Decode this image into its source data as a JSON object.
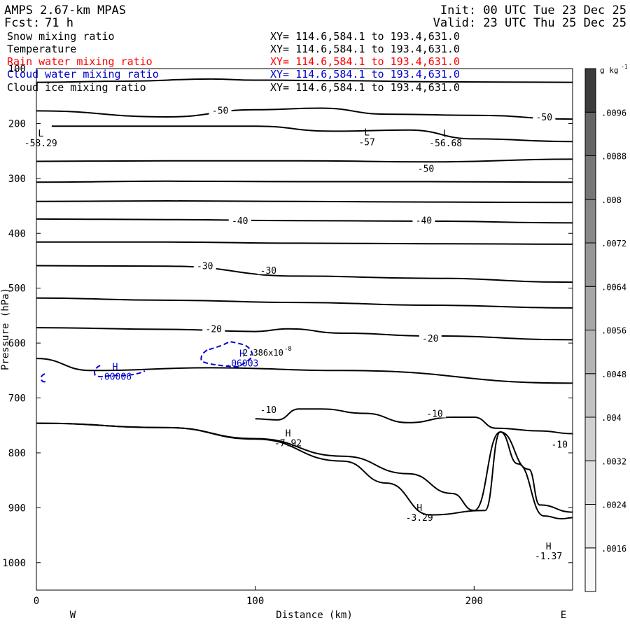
{
  "header": {
    "model": "AMPS 2.67-km MPAS",
    "fcst_label": "Fcst:",
    "fcst_hours": "71 h",
    "init": "Init: 00 UTC Tue 23 Dec 25",
    "valid": "Valid: 23 UTC Thu 25 Dec 25"
  },
  "fields": [
    {
      "name": "Snow mixing ratio",
      "xy": "XY= 114.6,584.1 to 193.4,631.0",
      "color": "#000000"
    },
    {
      "name": "Temperature",
      "xy": "XY= 114.6,584.1 to 193.4,631.0",
      "color": "#000000"
    },
    {
      "name": "Rain water mixing ratio",
      "xy": "XY= 114.6,584.1 to 193.4,631.0",
      "color": "#ff0000"
    },
    {
      "name": "Cloud water mixing ratio",
      "xy": "XY= 114.6,584.1 to 193.4,631.0",
      "color": "#0000cc"
    },
    {
      "name": "Cloud ice mixing ratio",
      "xy": "XY= 114.6,584.1 to 193.4,631.0",
      "color": "#000000"
    }
  ],
  "chart_data": {
    "type": "contour_cross_section",
    "xlabel": "Distance (km)",
    "ylabel": "Pressure (hPa)",
    "xlim": [
      0,
      245
    ],
    "ylim": [
      1050,
      100
    ],
    "x_ticks": [
      0,
      100,
      200
    ],
    "y_ticks": [
      100,
      200,
      300,
      400,
      500,
      600,
      700,
      800,
      900,
      1000
    ],
    "west_label": "W",
    "east_label": "E",
    "colorbar": {
      "unit": "g kg",
      "unit_exp": "-1",
      "levels": [
        ".0016",
        ".0024",
        ".0032",
        ".004",
        ".0048",
        ".0056",
        ".0064",
        ".0072",
        ".008",
        ".0088",
        ".0096"
      ],
      "colors": [
        "#f8f8f8",
        "#ebebeb",
        "#dedede",
        "#d0d0d0",
        "#c2c2c2",
        "#b4b4b4",
        "#a6a6a6",
        "#979797",
        "#888888",
        "#777777",
        "#656565",
        "#3c3c3c"
      ]
    },
    "temperature_lines": [
      [
        [
          0,
          125
        ],
        [
          40,
          123
        ],
        [
          80,
          119
        ],
        [
          100,
          121
        ],
        [
          140,
          122
        ],
        [
          180,
          124
        ],
        [
          245,
          125
        ]
      ],
      [
        [
          0,
          177
        ],
        [
          60,
          188
        ],
        [
          100,
          175
        ],
        [
          130,
          172
        ],
        [
          160,
          183
        ],
        [
          200,
          185
        ],
        [
          245,
          192
        ]
      ],
      [
        [
          7,
          205
        ],
        [
          60,
          205
        ],
        [
          100,
          205
        ],
        [
          135,
          214
        ],
        [
          170,
          212
        ],
        [
          200,
          228
        ],
        [
          245,
          233
        ]
      ],
      [
        [
          0,
          269
        ],
        [
          60,
          268
        ],
        [
          120,
          268
        ],
        [
          180,
          270
        ],
        [
          245,
          265
        ]
      ],
      [
        [
          0,
          307
        ],
        [
          60,
          305
        ],
        [
          120,
          306
        ],
        [
          180,
          306
        ],
        [
          245,
          307
        ]
      ],
      [
        [
          0,
          342
        ],
        [
          60,
          341
        ],
        [
          120,
          342
        ],
        [
          180,
          343
        ],
        [
          245,
          344
        ]
      ],
      [
        [
          0,
          374
        ],
        [
          60,
          375
        ],
        [
          120,
          377
        ],
        [
          180,
          378
        ],
        [
          245,
          381
        ]
      ],
      [
        [
          0,
          416
        ],
        [
          60,
          416
        ],
        [
          120,
          418
        ],
        [
          180,
          419
        ],
        [
          245,
          420
        ]
      ],
      [
        [
          0,
          459
        ],
        [
          60,
          460
        ],
        [
          120,
          478
        ],
        [
          180,
          482
        ],
        [
          245,
          489
        ]
      ],
      [
        [
          0,
          518
        ],
        [
          60,
          522
        ],
        [
          120,
          526
        ],
        [
          180,
          531
        ],
        [
          245,
          536
        ]
      ],
      [
        [
          0,
          572
        ],
        [
          60,
          575
        ],
        [
          100,
          579
        ],
        [
          115,
          574
        ],
        [
          140,
          582
        ],
        [
          180,
          587
        ],
        [
          245,
          594
        ]
      ],
      [
        [
          0,
          628
        ],
        [
          25,
          650
        ],
        [
          80,
          645
        ],
        [
          140,
          650
        ],
        [
          245,
          673
        ]
      ]
    ],
    "lower_temperature_lines": [
      [
        [
          0,
          746
        ],
        [
          60,
          754
        ],
        [
          100,
          774
        ],
        [
          140,
          806
        ],
        [
          170,
          838
        ],
        [
          190,
          874
        ],
        [
          200,
          905
        ],
        [
          212,
          762
        ],
        [
          220,
          820
        ],
        [
          232,
          915
        ],
        [
          240,
          920
        ],
        [
          245,
          918
        ]
      ],
      [
        [
          100,
          738
        ],
        [
          110,
          740
        ],
        [
          120,
          720
        ],
        [
          130,
          720
        ],
        [
          150,
          728
        ],
        [
          170,
          745
        ],
        [
          190,
          735
        ],
        [
          200,
          735
        ],
        [
          210,
          755
        ],
        [
          230,
          760
        ],
        [
          245,
          765
        ]
      ],
      [
        [
          0,
          746
        ],
        [
          60,
          754
        ],
        [
          100,
          775
        ],
        [
          140,
          815
        ],
        [
          160,
          855
        ],
        [
          180,
          913
        ],
        [
          205,
          905
        ],
        [
          212,
          762
        ],
        [
          225,
          830
        ],
        [
          230,
          895
        ],
        [
          245,
          908
        ]
      ]
    ],
    "contour_labels": [
      {
        "text": "-50",
        "x": 84,
        "y": 176
      },
      {
        "text": "-50",
        "x": 232,
        "y": 188
      },
      {
        "text": "-50",
        "x": 178,
        "y": 282
      },
      {
        "text": "-40",
        "x": 93,
        "y": 377
      },
      {
        "text": "-40",
        "x": 177,
        "y": 376
      },
      {
        "text": "-30",
        "x": 77,
        "y": 459
      },
      {
        "text": "-30",
        "x": 106,
        "y": 467
      },
      {
        "text": "-20",
        "x": 81,
        "y": 574
      },
      {
        "text": "-20",
        "x": 180,
        "y": 591
      },
      {
        "text": "-10",
        "x": 106,
        "y": 721
      },
      {
        "text": "-10",
        "x": 182,
        "y": 728
      },
      {
        "text": "-10",
        "x": 239,
        "y": 784
      }
    ],
    "extrema": [
      {
        "type": "L",
        "value": "-58.29",
        "x": 2,
        "y": 229,
        "color": "#000000"
      },
      {
        "type": "L",
        "value": "-57",
        "x": 151,
        "y": 227,
        "color": "#000000"
      },
      {
        "type": "L",
        "value": "-56.68",
        "x": 187,
        "y": 229,
        "color": "#000000"
      },
      {
        "type": "H",
        "value": "-7.92",
        "x": 115,
        "y": 775,
        "color": "#000000"
      },
      {
        "type": "H",
        "value": "-3.29",
        "x": 175,
        "y": 911,
        "color": "#000000"
      },
      {
        "type": "H",
        "value": "-1.37",
        "x": 234,
        "y": 981,
        "color": "#000000"
      },
      {
        "type": "H",
        "value": ".00006",
        "x": 36,
        "y": 654,
        "color": "#0000cc"
      },
      {
        "type": "H",
        "value": ".06003",
        "x": 94,
        "y": 630,
        "color": "#0000cc"
      }
    ],
    "cloud_annotation": "2.386x10",
    "cloud_annotation_exp": "-8"
  }
}
